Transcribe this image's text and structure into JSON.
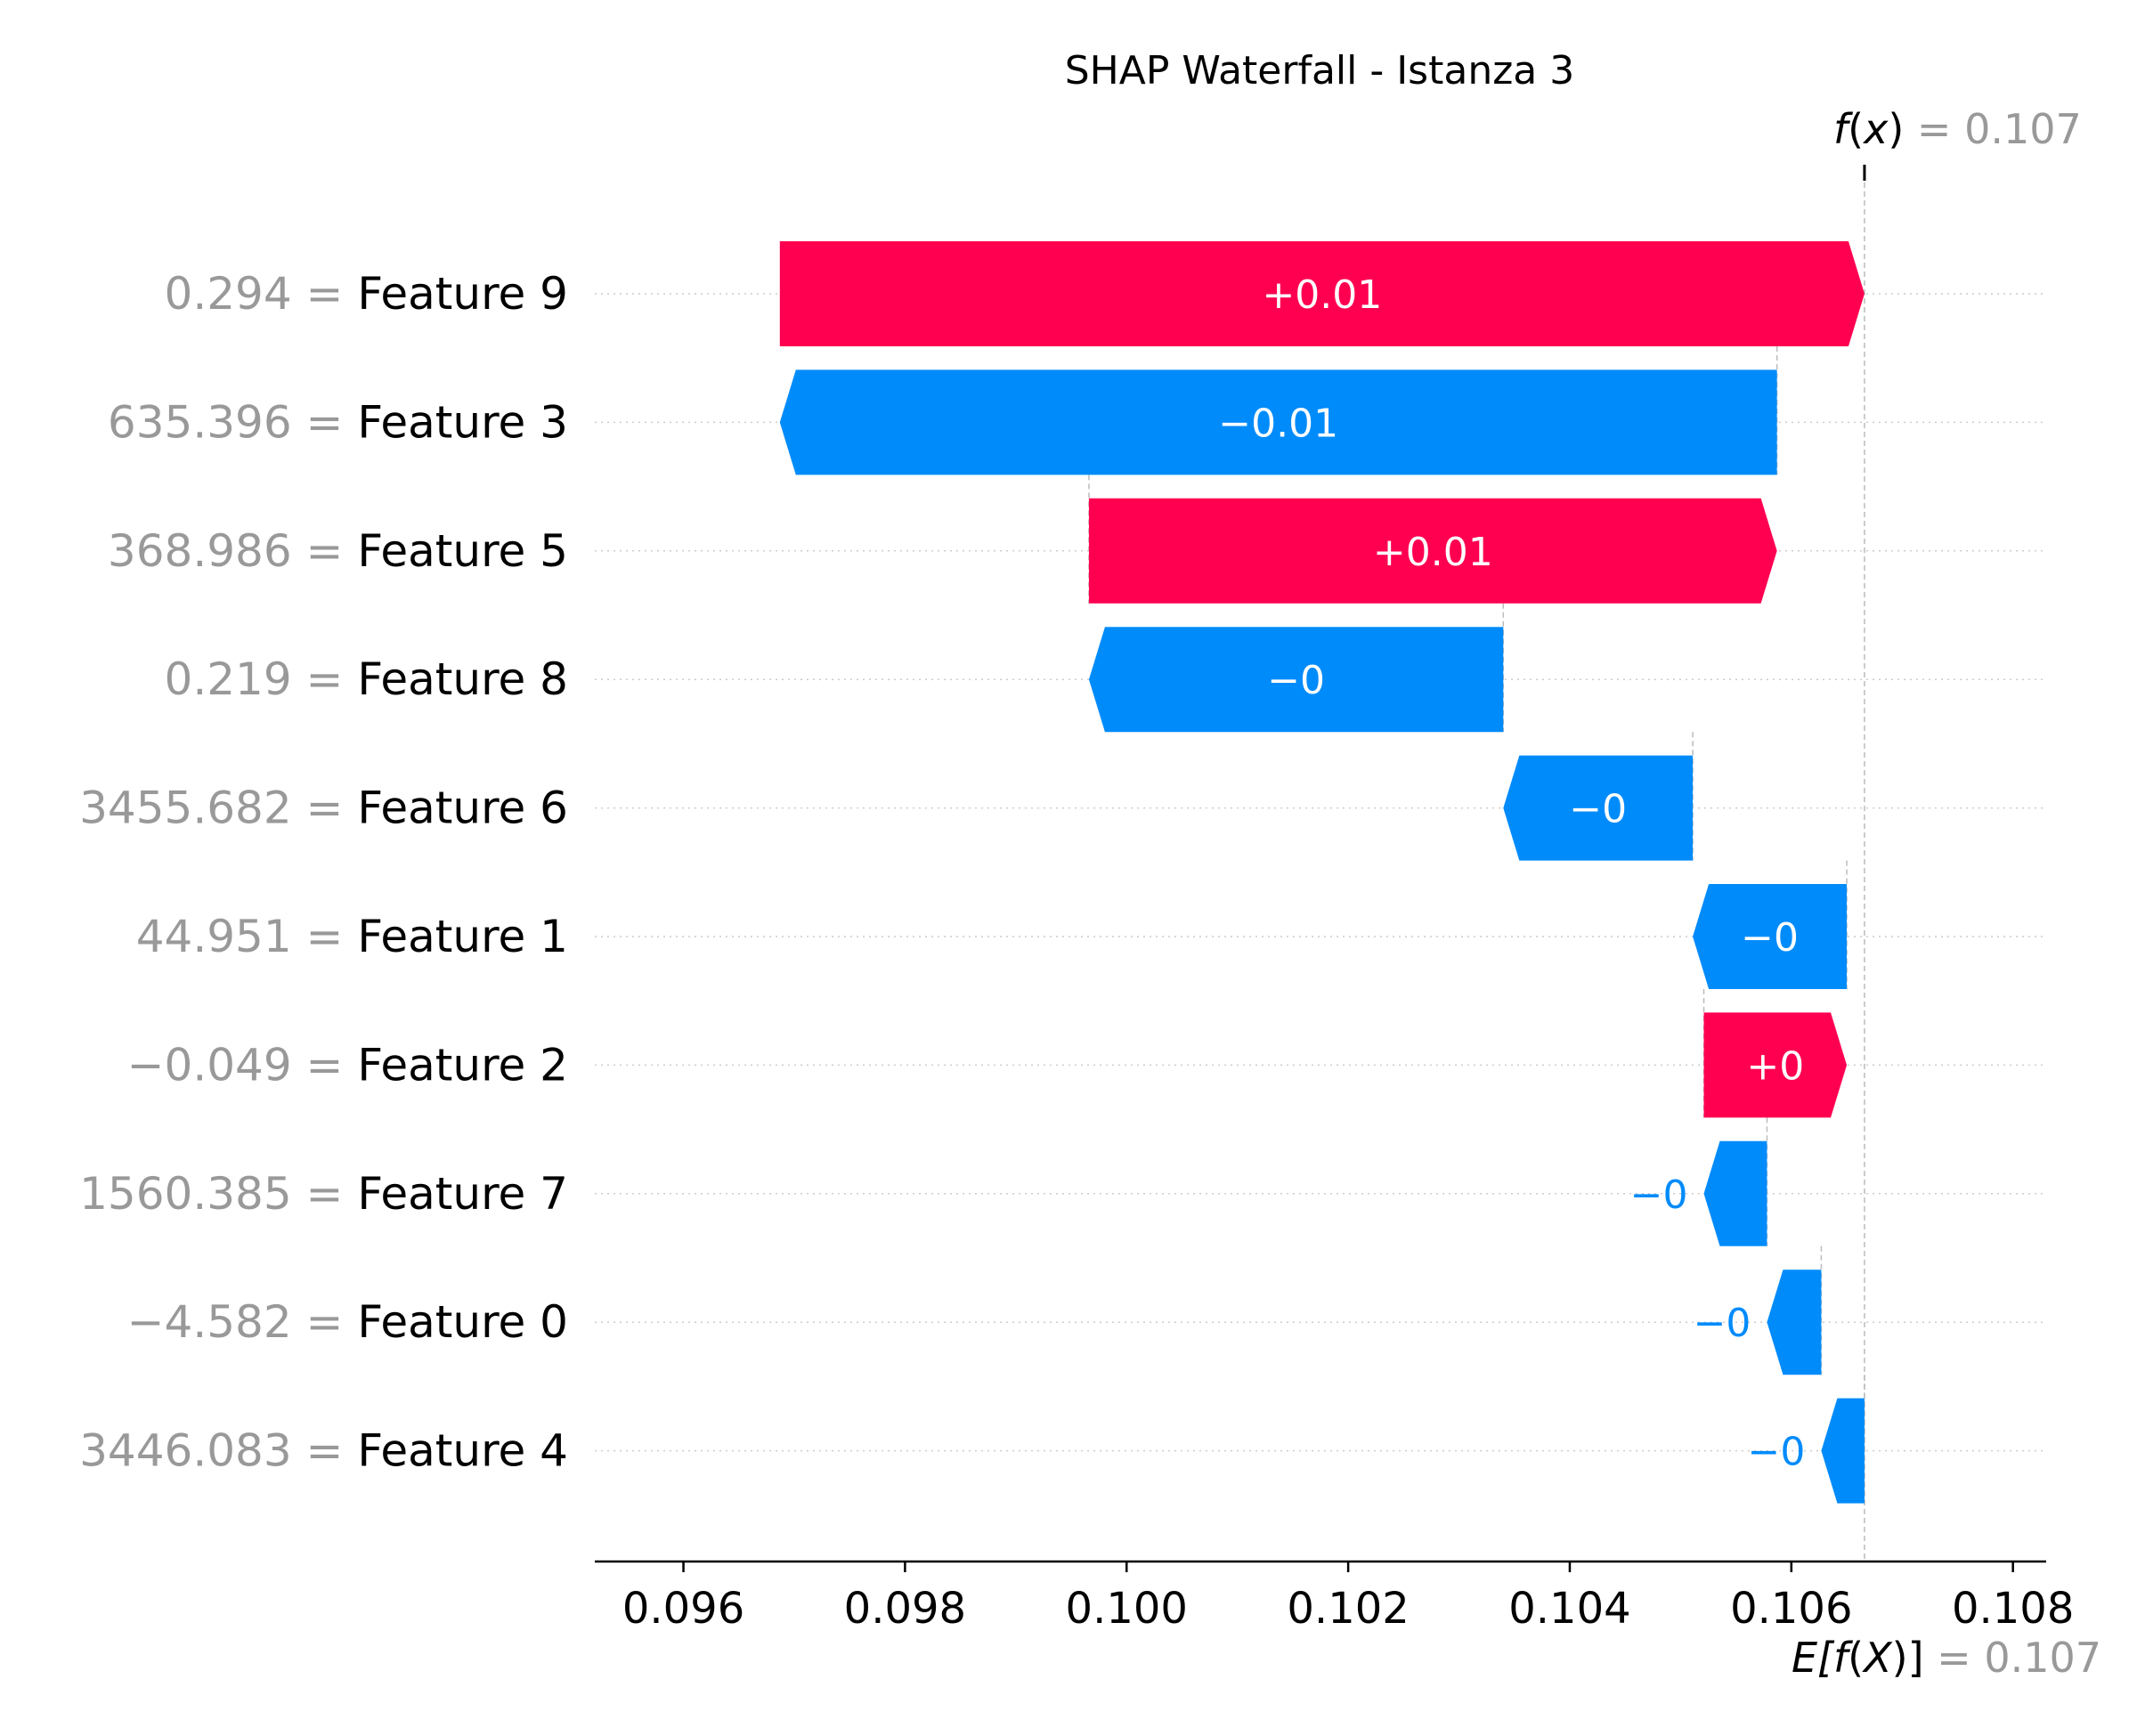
{
  "colors": {
    "positive": "#ff0051",
    "negative": "#008bfb",
    "value_text": "#999999",
    "label_text": "#000000",
    "bar_text": "#ffffff",
    "axis": "#000000",
    "guide": "#bbbbbb"
  },
  "chart_data": {
    "type": "waterfall",
    "title": "SHAP Waterfall - Istanza 3",
    "fx_label_prefix": "f",
    "fx_label_var": "x",
    "fx_eq": "= 0.107",
    "fx_value": 0.10666,
    "ex_label_prefix": "E[",
    "ex_label_f": "f",
    "ex_label_var": "X",
    "ex_label_suffix": ")]",
    "ex_eq": "= 0.107",
    "ex_value": 0.10666,
    "xlim": [
      0.0952,
      0.1083
    ],
    "ticks": [
      0.096,
      0.098,
      0.1,
      0.102,
      0.104,
      0.106,
      0.108
    ],
    "tick_labels": [
      "0.096",
      "0.098",
      "0.100",
      "0.102",
      "0.104",
      "0.106",
      "0.108"
    ],
    "rows": [
      {
        "value_text": "0.294",
        "feature": "Feature 9",
        "start": 0.09687,
        "end": 0.10666,
        "label": "+0.01",
        "sign": "pos"
      },
      {
        "value_text": "635.396",
        "feature": "Feature 3",
        "start": 0.10587,
        "end": 0.09687,
        "label": "−0.01",
        "sign": "neg"
      },
      {
        "value_text": "368.986",
        "feature": "Feature 5",
        "start": 0.09966,
        "end": 0.10587,
        "label": "+0.01",
        "sign": "pos"
      },
      {
        "value_text": "0.219",
        "feature": "Feature 8",
        "start": 0.1034,
        "end": 0.09966,
        "label": "−0",
        "sign": "neg"
      },
      {
        "value_text": "3455.682",
        "feature": "Feature 6",
        "start": 0.10511,
        "end": 0.1034,
        "label": "−0",
        "sign": "neg"
      },
      {
        "value_text": "44.951",
        "feature": "Feature 1",
        "start": 0.1065,
        "end": 0.10511,
        "label": "−0",
        "sign": "neg"
      },
      {
        "value_text": "−0.049",
        "feature": "Feature 2",
        "start": 0.10521,
        "end": 0.1065,
        "label": "+0",
        "sign": "pos"
      },
      {
        "value_text": "1560.385",
        "feature": "Feature 7",
        "start": 0.10578,
        "end": 0.10521,
        "label": "−0",
        "sign": "neg"
      },
      {
        "value_text": "−4.582",
        "feature": "Feature 0",
        "start": 0.10627,
        "end": 0.10578,
        "label": "−0",
        "sign": "neg"
      },
      {
        "value_text": "3446.083",
        "feature": "Feature 4",
        "start": 0.10666,
        "end": 0.10627,
        "label": "−0",
        "sign": "neg"
      }
    ]
  }
}
